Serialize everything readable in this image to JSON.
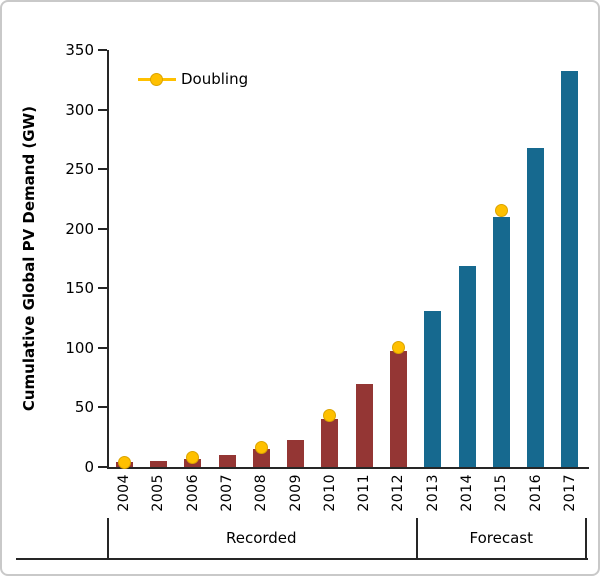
{
  "frame": {
    "background": "#ffffff",
    "border_color": "#c9c9c9",
    "axis_color": "#262626"
  },
  "chart_data": {
    "type": "bar",
    "title": "",
    "xlabel": "",
    "ylabel": "Cumulative Global PV Demand (GW)",
    "ylim": [
      0,
      350
    ],
    "yticks": [
      0,
      50,
      100,
      150,
      200,
      250,
      300,
      350
    ],
    "grid": false,
    "legend_position": "top-left",
    "categories": [
      "2004",
      "2005",
      "2006",
      "2007",
      "2008",
      "2009",
      "2010",
      "2011",
      "2012",
      "2013",
      "2014",
      "2015",
      "2016",
      "2017"
    ],
    "series": [
      {
        "name": "Recorded",
        "color": "#943634",
        "values": [
          4,
          5,
          7,
          10,
          15,
          23,
          40,
          70,
          97
        ]
      },
      {
        "name": "Forecast",
        "color": "#16698F",
        "values": [
          131,
          169,
          210,
          268,
          332
        ]
      }
    ],
    "groups": [
      {
        "label": "Recorded",
        "start": 0,
        "span": 9
      },
      {
        "label": "Forecast",
        "start": 9,
        "span": 5
      }
    ],
    "doubling": {
      "label": "Doubling",
      "color": "#FFC000",
      "points": [
        {
          "year": "2004",
          "value": 4
        },
        {
          "year": "2006",
          "value": 8
        },
        {
          "year": "2008",
          "value": 16
        },
        {
          "year": "2010",
          "value": 43
        },
        {
          "year": "2012",
          "value": 100
        },
        {
          "year": "2015",
          "value": 215
        }
      ]
    }
  }
}
